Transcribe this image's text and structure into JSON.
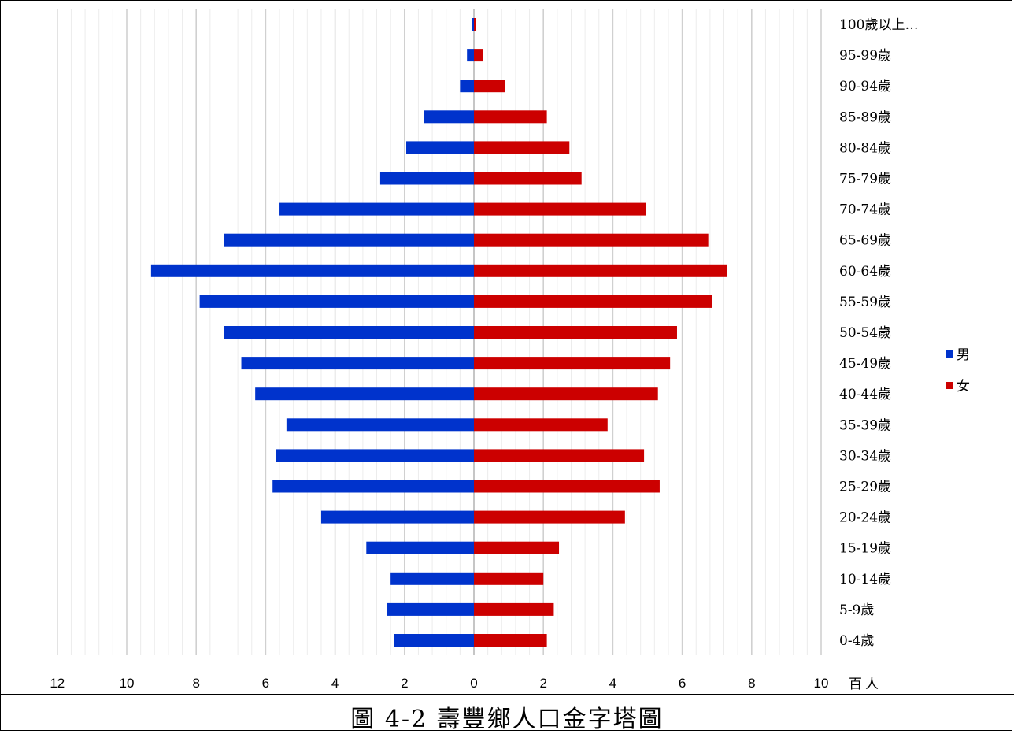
{
  "caption": "圖 4-2 壽豐鄉人口金字塔圖",
  "chart_data": {
    "type": "bar",
    "orientation": "horizontal-pyramid",
    "categories": [
      "0-4歲",
      "5-9歲",
      "10-14歲",
      "15-19歲",
      "20-24歲",
      "25-29歲",
      "30-34歲",
      "35-39歲",
      "40-44歲",
      "45-49歲",
      "50-54歲",
      "55-59歲",
      "60-64歲",
      "65-69歲",
      "70-74歲",
      "75-79歲",
      "80-84歲",
      "85-89歲",
      "90-94歲",
      "95-99歲",
      "100歲以上…"
    ],
    "series": [
      {
        "name": "男",
        "color": "#0033cc",
        "values": [
          2.3,
          2.5,
          2.4,
          3.1,
          4.4,
          5.8,
          5.7,
          5.4,
          6.3,
          6.7,
          7.2,
          7.9,
          9.3,
          7.2,
          5.6,
          2.7,
          1.95,
          1.45,
          0.4,
          0.2,
          0.05
        ]
      },
      {
        "name": "女",
        "color": "#cc0000",
        "values": [
          2.1,
          2.3,
          2.0,
          2.45,
          4.35,
          5.35,
          4.9,
          3.85,
          5.3,
          5.65,
          5.85,
          6.85,
          7.3,
          6.75,
          4.95,
          3.1,
          2.75,
          2.1,
          0.9,
          0.25,
          0.05
        ]
      }
    ],
    "x_ticks_left": [
      "12",
      "10",
      "8",
      "6",
      "4",
      "2",
      "0"
    ],
    "x_ticks_right": [
      "2",
      "4",
      "6",
      "8",
      "10"
    ],
    "x_unit": "百人",
    "xlim": [
      -12,
      10
    ],
    "grid": true,
    "legend_position": "right"
  }
}
